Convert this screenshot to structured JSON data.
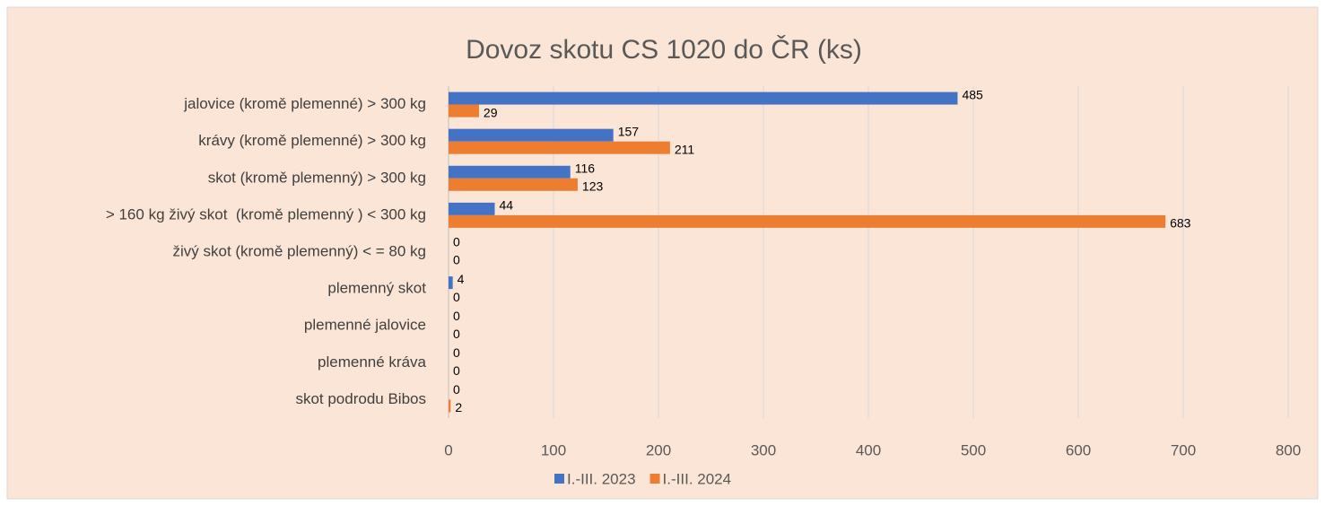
{
  "chart_data": {
    "type": "bar",
    "orientation": "horizontal",
    "title": "Dovoz skotu CS 1020 do ČR (ks)",
    "categories": [
      "jalovice (kromě plemenné) > 300 kg",
      "krávy (kromě plemenné) > 300 kg",
      "skot (kromě plemenný) > 300 kg",
      "> 160 kg živý skot  (kromě plemenný ) < 300 kg",
      "živý skot (kromě plemenný) < = 80 kg",
      "plemenný skot",
      "plemenné jalovice",
      "plemenné kráva",
      "skot podrodu Bibos"
    ],
    "series": [
      {
        "name": "I.-III. 2023",
        "color": "#4472c4",
        "values": [
          485,
          157,
          116,
          44,
          0,
          4,
          0,
          0,
          0
        ]
      },
      {
        "name": "I.-III. 2024",
        "color": "#ed7d31",
        "values": [
          29,
          211,
          123,
          683,
          0,
          0,
          0,
          0,
          2
        ]
      }
    ],
    "xlim": [
      0,
      800
    ],
    "xticks": [
      0,
      100,
      200,
      300,
      400,
      500,
      600,
      700,
      800
    ],
    "grid": true,
    "legend": "bottom",
    "data_labels": true
  }
}
